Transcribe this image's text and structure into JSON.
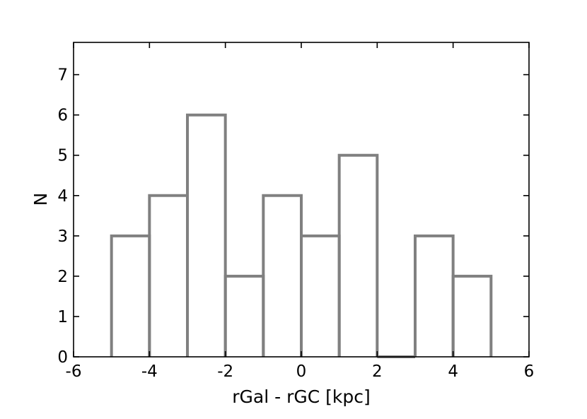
{
  "chart_data": {
    "type": "bar",
    "subtype": "histogram",
    "bin_edges": [
      -5,
      -4,
      -3,
      -2,
      -1,
      0,
      1,
      2,
      3,
      4,
      5
    ],
    "values": [
      3,
      4,
      6,
      2,
      4,
      3,
      5,
      0,
      3,
      2
    ],
    "xlim": [
      -6,
      6
    ],
    "ylim": [
      0,
      7.8
    ],
    "xticks": [
      "-6",
      "-4",
      "-2",
      "0",
      "2",
      "4",
      "6"
    ],
    "yticks": [
      "0",
      "1",
      "2",
      "3",
      "4",
      "5",
      "6",
      "7"
    ],
    "xlabel": "rGal - rGC [kpc]",
    "ylabel": "N",
    "bar_style": "outline",
    "bar_color": "#808080",
    "grid": false
  }
}
